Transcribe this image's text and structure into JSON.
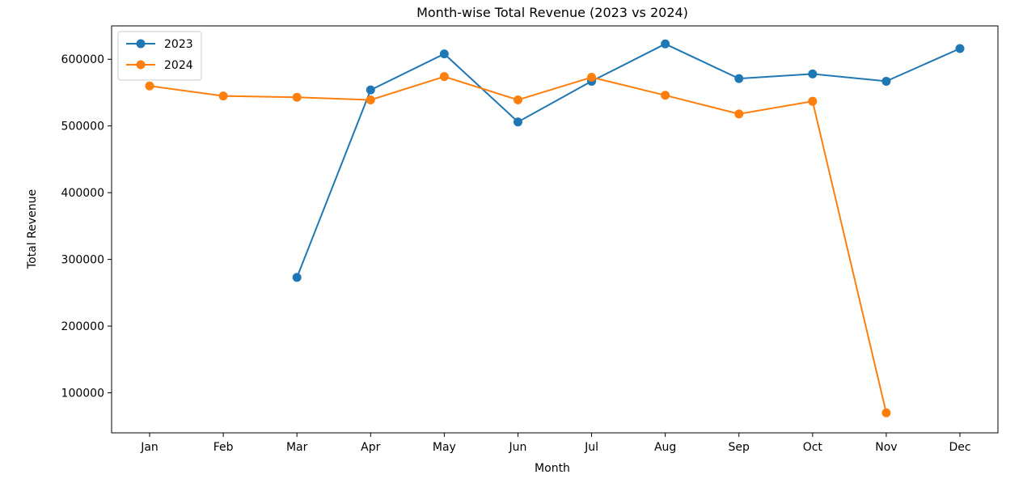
{
  "chart_data": {
    "type": "line",
    "title": "Month-wise Total Revenue (2023 vs 2024)",
    "xlabel": "Month",
    "ylabel": "Total Revenue",
    "categories": [
      "Jan",
      "Feb",
      "Mar",
      "Apr",
      "May",
      "Jun",
      "Jul",
      "Aug",
      "Sep",
      "Oct",
      "Nov",
      "Dec"
    ],
    "ylim": [
      40000,
      650000
    ],
    "yticks": [
      100000,
      200000,
      300000,
      400000,
      500000,
      600000
    ],
    "ytick_labels": [
      "100000",
      "200000",
      "300000",
      "400000",
      "500000",
      "600000"
    ],
    "grid": false,
    "legend_position": "upper left",
    "series": [
      {
        "name": "2023",
        "color": "#1f77b4",
        "values": [
          null,
          null,
          273000,
          554000,
          608000,
          506000,
          567000,
          623000,
          571000,
          578000,
          567000,
          616000
        ]
      },
      {
        "name": "2024",
        "color": "#ff7f0e",
        "values": [
          560000,
          545000,
          543000,
          539000,
          574000,
          539000,
          573000,
          546000,
          518000,
          537000,
          70000,
          null
        ]
      }
    ]
  }
}
